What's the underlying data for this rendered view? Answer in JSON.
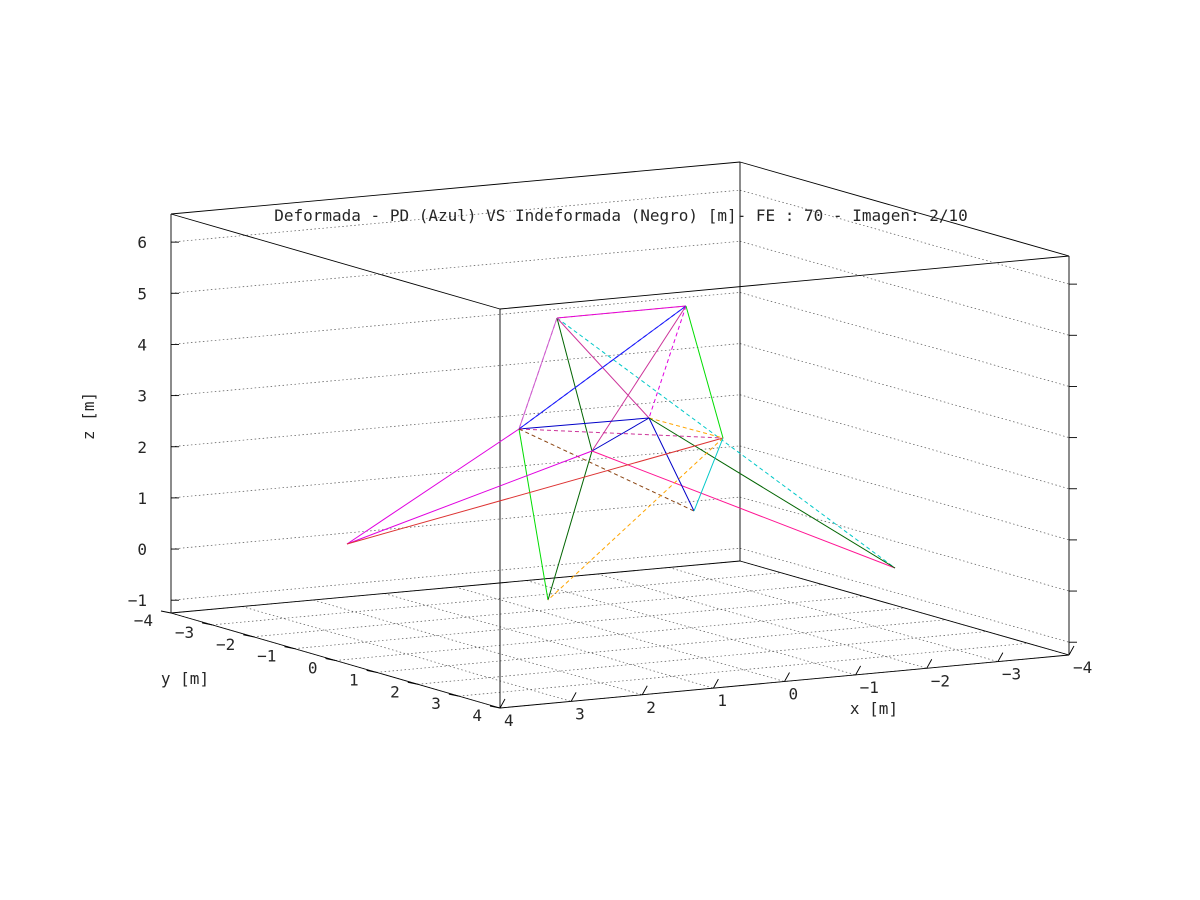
{
  "chart_data": {
    "type": "3d-wireframe",
    "title": "Deformada - PD (Azul) VS Indeformada (Negro) [m]- FE : 70  - Imagen: 2/10",
    "xlabel": "x [m]",
    "ylabel": "y [m]",
    "zlabel": "z [m]",
    "xlim": [
      -4,
      4
    ],
    "ylim": [
      -4,
      4
    ],
    "zlim": [
      -1,
      6
    ],
    "x_ticks": [
      "4",
      "3",
      "2",
      "1",
      "0",
      "−1",
      "−2",
      "−3",
      "−4"
    ],
    "y_ticks": [
      "−4",
      "−3",
      "−2",
      "−1",
      "0",
      "1",
      "2",
      "3",
      "4"
    ],
    "z_ticks": [
      "−1",
      "0",
      "1",
      "2",
      "3",
      "4",
      "5",
      "6"
    ],
    "grid": true,
    "colors": {
      "frame": "#000000",
      "grid": "#555555",
      "text": "#262626"
    },
    "members": [
      {
        "from": [
          557,
          318
        ],
        "to": [
          686,
          306
        ],
        "color": "#ffa500",
        "dashed": true
      },
      {
        "from": [
          557,
          318
        ],
        "to": [
          686,
          306
        ],
        "color": "#e000e0",
        "dashed": false
      },
      {
        "from": [
          557,
          318
        ],
        "to": [
          519,
          429
        ],
        "color": "#e000e0",
        "dashed": true
      },
      {
        "from": [
          557,
          318
        ],
        "to": [
          519,
          429
        ],
        "color": "#cc66cc",
        "dashed": false
      },
      {
        "from": [
          557,
          318
        ],
        "to": [
          592,
          451
        ],
        "color": "#006400",
        "dashed": false
      },
      {
        "from": [
          557,
          318
        ],
        "to": [
          895,
          568
        ],
        "color": "#00c8c8",
        "dashed": true
      },
      {
        "from": [
          557,
          318
        ],
        "to": [
          649,
          418
        ],
        "color": "#cc3399",
        "dashed": false
      },
      {
        "from": [
          686,
          306
        ],
        "to": [
          519,
          429
        ],
        "color": "#0000c8",
        "dashed": true
      },
      {
        "from": [
          686,
          306
        ],
        "to": [
          519,
          429
        ],
        "color": "#1a1aff",
        "dashed": false
      },
      {
        "from": [
          686,
          306
        ],
        "to": [
          592,
          451
        ],
        "color": "#cc3399",
        "dashed": false
      },
      {
        "from": [
          686,
          306
        ],
        "to": [
          649,
          418
        ],
        "color": "#e000e0",
        "dashed": true
      },
      {
        "from": [
          686,
          306
        ],
        "to": [
          723,
          438
        ],
        "color": "#00dd00",
        "dashed": false
      },
      {
        "from": [
          519,
          429
        ],
        "to": [
          649,
          418
        ],
        "color": "#0000c8",
        "dashed": false
      },
      {
        "from": [
          519,
          429
        ],
        "to": [
          548,
          600
        ],
        "color": "#00dd00",
        "dashed": false
      },
      {
        "from": [
          519,
          429
        ],
        "to": [
          347,
          544
        ],
        "color": "#e000e0",
        "dashed": false
      },
      {
        "from": [
          519,
          429
        ],
        "to": [
          723,
          438
        ],
        "color": "#cc3399",
        "dashed": true
      },
      {
        "from": [
          519,
          429
        ],
        "to": [
          694,
          511
        ],
        "color": "#8b4513",
        "dashed": true
      },
      {
        "from": [
          592,
          451
        ],
        "to": [
          548,
          600
        ],
        "color": "#006400",
        "dashed": false
      },
      {
        "from": [
          592,
          451
        ],
        "to": [
          649,
          418
        ],
        "color": "#0000c8",
        "dashed": false
      },
      {
        "from": [
          592,
          451
        ],
        "to": [
          347,
          544
        ],
        "color": "#e000e0",
        "dashed": false
      },
      {
        "from": [
          592,
          451
        ],
        "to": [
          895,
          568
        ],
        "color": "#ff1493",
        "dashed": false
      },
      {
        "from": [
          649,
          418
        ],
        "to": [
          723,
          438
        ],
        "color": "#ffa500",
        "dashed": true
      },
      {
        "from": [
          649,
          418
        ],
        "to": [
          694,
          511
        ],
        "color": "#0000c8",
        "dashed": false
      },
      {
        "from": [
          649,
          418
        ],
        "to": [
          895,
          568
        ],
        "color": "#006400",
        "dashed": false
      },
      {
        "from": [
          723,
          438
        ],
        "to": [
          347,
          544
        ],
        "color": "#dd3333",
        "dashed": false
      },
      {
        "from": [
          723,
          438
        ],
        "to": [
          548,
          600
        ],
        "color": "#ffa500",
        "dashed": true
      },
      {
        "from": [
          723,
          438
        ],
        "to": [
          694,
          511
        ],
        "color": "#00c8c8",
        "dashed": false
      }
    ]
  }
}
